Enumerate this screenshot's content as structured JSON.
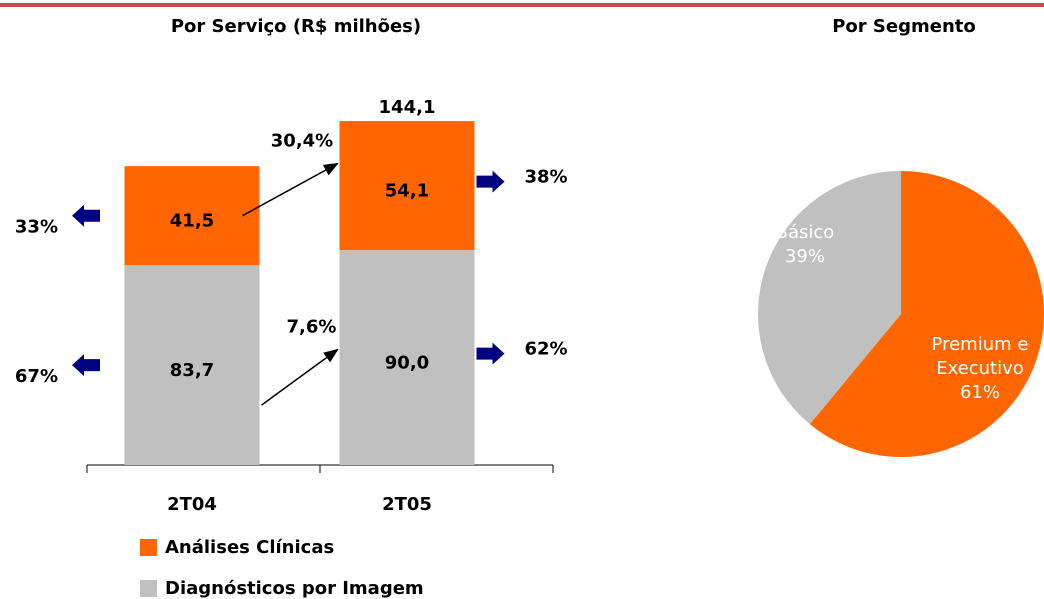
{
  "chart_data": [
    {
      "type": "stacked_bar",
      "title": "Por Serviço (R$ milhões)",
      "categories": [
        "2T04",
        "2T05"
      ],
      "ylim": [
        0,
        150
      ],
      "series": [
        {
          "name": "Diagnósticos por Imagem",
          "color": "#c0c0c0",
          "values": [
            83.7,
            90.0
          ],
          "value_labels": [
            "83,7",
            "90,0"
          ],
          "shares": [
            67,
            62
          ],
          "share_labels": [
            "67%",
            "62%"
          ],
          "growth": 7.6,
          "growth_label": "7,6%"
        },
        {
          "name": "Análises Clínicas",
          "color": "#ff6600",
          "values": [
            41.5,
            54.1
          ],
          "value_labels": [
            "41,5",
            "54,1"
          ],
          "shares": [
            33,
            38
          ],
          "share_labels": [
            "33%",
            "38%"
          ],
          "growth": 30.4,
          "growth_label": "30,4%"
        }
      ],
      "totals": [
        null,
        144.1
      ],
      "total_labels": [
        null,
        "144,1"
      ]
    },
    {
      "type": "pie",
      "title": "Por Segmento",
      "categories": [
        "Premium e Executivo",
        "Básico"
      ],
      "values": [
        61,
        39
      ],
      "value_labels": [
        "61%",
        "39%"
      ],
      "colors": [
        "#ff6600",
        "#c0c0c0"
      ]
    }
  ]
}
